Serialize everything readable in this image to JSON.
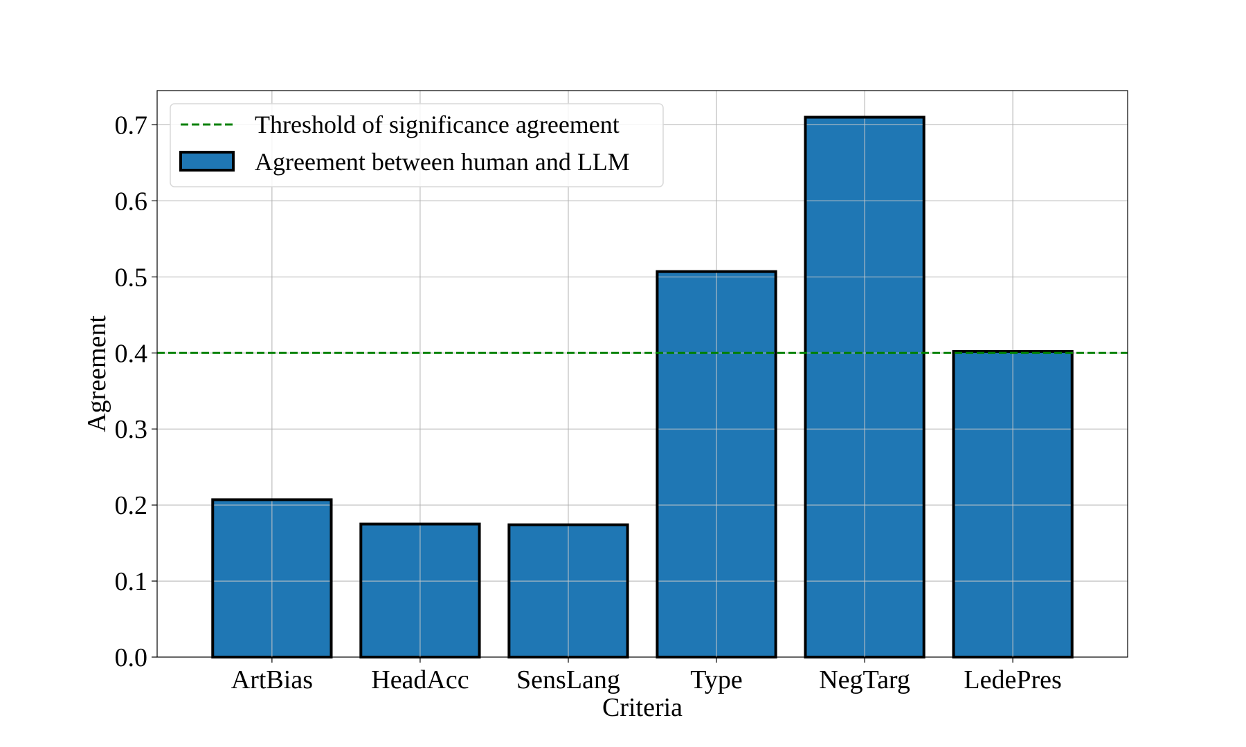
{
  "chart_data": {
    "type": "bar",
    "title": "",
    "xlabel": "Criteria",
    "ylabel": "Agreement",
    "categories": [
      "ArtBias",
      "HeadAcc",
      "SensLang",
      "Type",
      "NegTarg",
      "LedePres"
    ],
    "series": [
      {
        "name": "Agreement between human and LLM",
        "values": [
          0.207,
          0.175,
          0.174,
          0.507,
          0.71,
          0.402
        ],
        "color": "#1f77b4"
      }
    ],
    "threshold": {
      "name": "Threshold of significance agreement",
      "value": 0.4,
      "color": "#008000",
      "style": "dashed"
    },
    "yticks": [
      "0.0",
      "0.1",
      "0.2",
      "0.3",
      "0.4",
      "0.5",
      "0.6",
      "0.7"
    ],
    "ylim": [
      0,
      0.745
    ],
    "grid": true,
    "legend_position": "top-left"
  }
}
